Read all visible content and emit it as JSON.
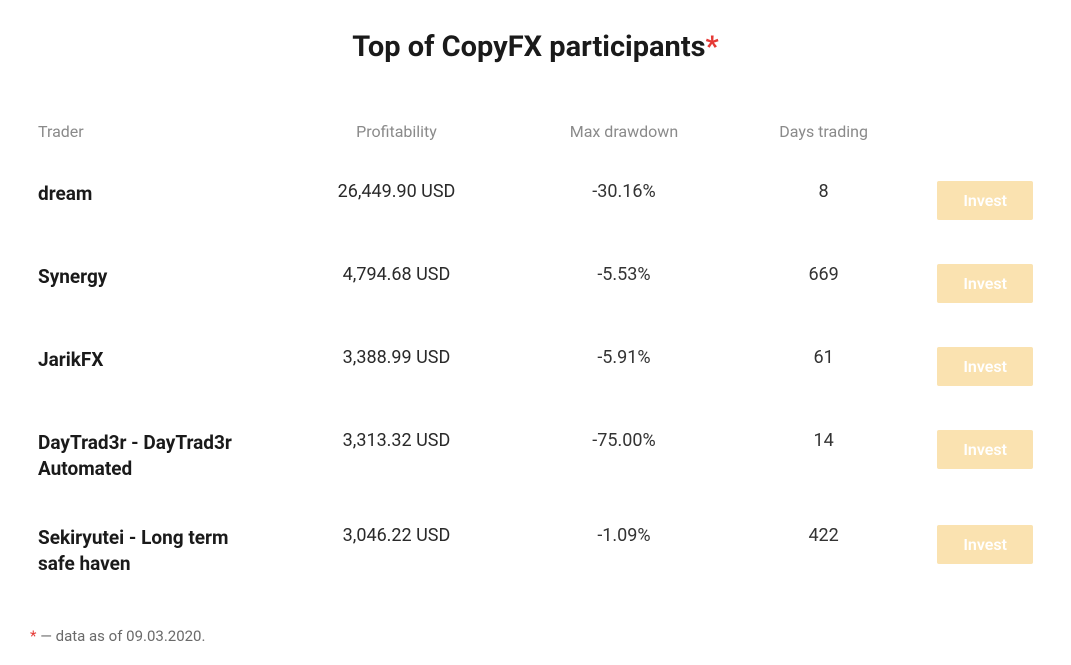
{
  "header": {
    "title": "Top of CopyFX participants",
    "asterisk": "*"
  },
  "columns": {
    "trader": "Trader",
    "profitability": "Profitability",
    "drawdown": "Max drawdown",
    "days": "Days trading"
  },
  "rows": [
    {
      "trader": "dream",
      "profitability": "26,449.90 USD",
      "drawdown": "-30.16%",
      "days": "8",
      "action": "Invest"
    },
    {
      "trader": "Synergy",
      "profitability": "4,794.68 USD",
      "drawdown": "-5.53%",
      "days": "669",
      "action": "Invest"
    },
    {
      "trader": "JarikFX",
      "profitability": "3,388.99 USD",
      "drawdown": "-5.91%",
      "days": "61",
      "action": "Invest"
    },
    {
      "trader": "DayTrad3r - DayTrad3r Automated",
      "profitability": "3,313.32 USD",
      "drawdown": "-75.00%",
      "days": "14",
      "action": "Invest"
    },
    {
      "trader": "Sekiryutei - Long term safe haven",
      "profitability": "3,046.22 USD",
      "drawdown": "-1.09%",
      "days": "422",
      "action": "Invest"
    }
  ],
  "footnote": {
    "asterisk": "*",
    "text": " — data as of 09.03.2020."
  },
  "colors": {
    "accent_asterisk": "#e53935",
    "button_bg": "#fae2b0",
    "button_fg": "#ffffff",
    "header_text": "#8a8a8a",
    "body_text": "#2a2a2a"
  },
  "table_style": {
    "type": "table",
    "font_family": "sans-serif",
    "title_fontsize": 29,
    "header_fontsize": 16,
    "trader_fontsize": 19,
    "profit_fontsize": 21,
    "cell_fontsize": 17,
    "button_fontsize": 16,
    "column_alignment": [
      "left",
      "center",
      "center",
      "center",
      "right"
    ]
  }
}
